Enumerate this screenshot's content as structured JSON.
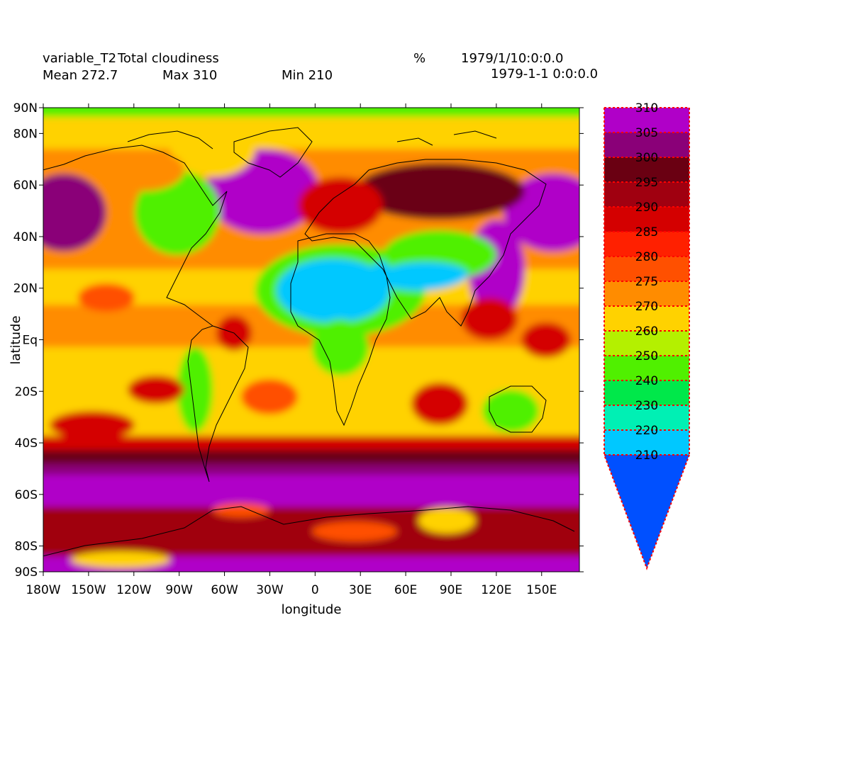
{
  "header": {
    "variable_label": "variable_T2",
    "variable_name": "Total cloudiness",
    "units": "%",
    "time": "1979/1/10:0:0.0",
    "mean": "Mean 272.7",
    "max": "Max 310",
    "min": "Min 210",
    "base_time": "1979-1-1 0:0:0.0"
  },
  "axes": {
    "ylabel": "latitude",
    "xlabel": "longitude",
    "lat_ticks": [
      "90N",
      "80N",
      "60N",
      "40N",
      "20N",
      "Eq",
      "20S",
      "40S",
      "60S",
      "80S",
      "90S"
    ],
    "lat_values": [
      90,
      80,
      60,
      40,
      20,
      0,
      -20,
      -40,
      -60,
      -80,
      -90
    ],
    "lon_ticks": [
      "180W",
      "150W",
      "120W",
      "90W",
      "60W",
      "30W",
      "0",
      "30E",
      "60E",
      "90E",
      "120E",
      "150E"
    ],
    "lon_values": [
      -180,
      -150,
      -120,
      -90,
      -60,
      -30,
      0,
      30,
      60,
      90,
      120,
      150
    ],
    "lon_range": [
      -180,
      175
    ],
    "lat_range": [
      -90,
      90
    ]
  },
  "colorbar": {
    "levels": [
      "310",
      "305",
      "300",
      "295",
      "290",
      "285",
      "280",
      "275",
      "270",
      "260",
      "250",
      "240",
      "230",
      "220",
      "210"
    ],
    "colors": [
      "#b000c8",
      "#8a0078",
      "#6a0012",
      "#a00010",
      "#d40000",
      "#ff2000",
      "#ff5000",
      "#ff8c00",
      "#ffd200",
      "#b4f000",
      "#50f000",
      "#00e84a",
      "#00f0b4",
      "#00c8ff"
    ],
    "extend_color": "#0050ff",
    "dash_color": "#ff0000"
  },
  "map": {
    "colors": {
      "violet": "#b000c8",
      "plum": "#8a0078",
      "maroon": "#6a0012",
      "darkred": "#a00010",
      "red": "#d40000",
      "orange_red": "#ff5000",
      "orange": "#ff8c00",
      "yellow": "#ffd200",
      "lime": "#b4f000",
      "green": "#50f000",
      "cyan": "#00c8ff"
    }
  }
}
